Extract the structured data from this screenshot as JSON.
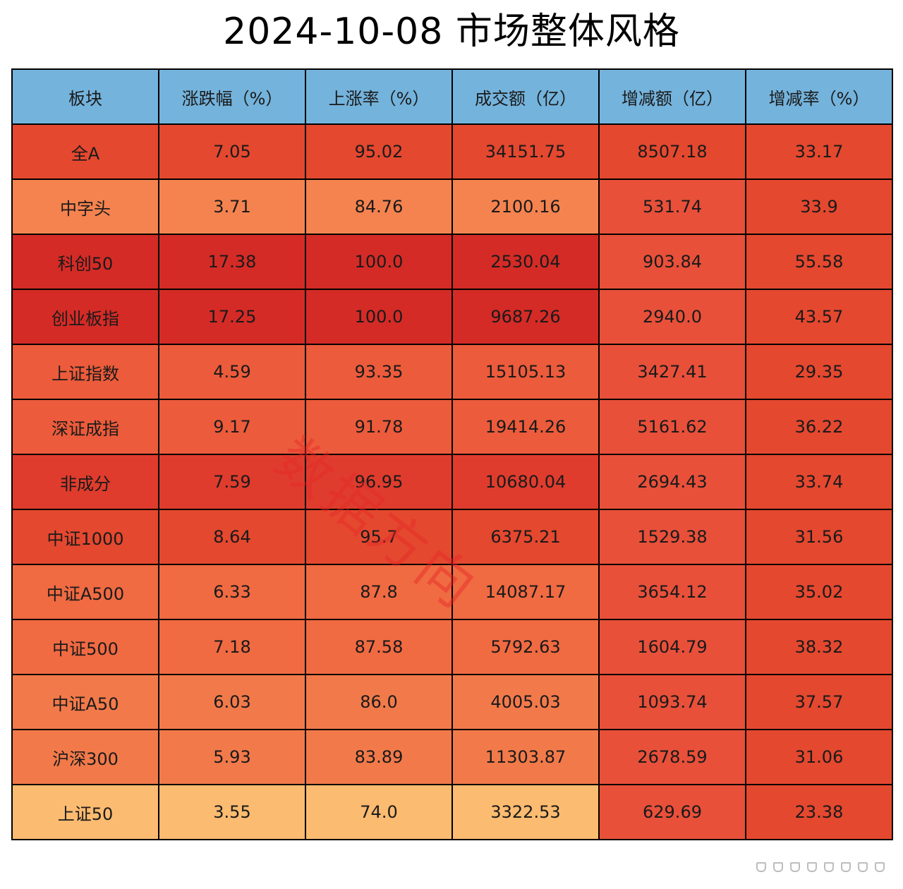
{
  "title": "2024-10-08 市场整体风格",
  "watermark": "数据方向",
  "chart_data": {
    "type": "heatmap",
    "title": "2024-10-08 市场整体风格",
    "columns": [
      "板块",
      "涨跌幅（%）",
      "上涨率（%）",
      "成交额（亿）",
      "增减额（亿）",
      "增减率（%）"
    ],
    "rows": [
      {
        "name": "全A",
        "values": [
          "7.05",
          "95.02",
          "34151.75",
          "8507.18",
          "33.17"
        ]
      },
      {
        "name": "中字头",
        "values": [
          "3.71",
          "84.76",
          "2100.16",
          "531.74",
          "33.9"
        ]
      },
      {
        "name": "科创50",
        "values": [
          "17.38",
          "100.0",
          "2530.04",
          "903.84",
          "55.58"
        ]
      },
      {
        "name": "创业板指",
        "values": [
          "17.25",
          "100.0",
          "9687.26",
          "2940.0",
          "43.57"
        ]
      },
      {
        "name": "上证指数",
        "values": [
          "4.59",
          "93.35",
          "15105.13",
          "3427.41",
          "29.35"
        ]
      },
      {
        "name": "深证成指",
        "values": [
          "9.17",
          "91.78",
          "19414.26",
          "5161.62",
          "36.22"
        ]
      },
      {
        "name": "非成分",
        "values": [
          "7.59",
          "96.95",
          "10680.04",
          "2694.43",
          "33.74"
        ]
      },
      {
        "name": "中证1000",
        "values": [
          "8.64",
          "95.7",
          "6375.21",
          "1529.38",
          "31.56"
        ]
      },
      {
        "name": "中证A500",
        "values": [
          "6.33",
          "87.8",
          "14087.17",
          "3654.12",
          "35.02"
        ]
      },
      {
        "name": "中证500",
        "values": [
          "7.18",
          "87.58",
          "5792.63",
          "1604.79",
          "38.32"
        ]
      },
      {
        "name": "中证A50",
        "values": [
          "6.03",
          "86.0",
          "4005.03",
          "1093.74",
          "37.57"
        ]
      },
      {
        "name": "沪深300",
        "values": [
          "5.93",
          "83.89",
          "11303.87",
          "2678.59",
          "31.06"
        ]
      },
      {
        "name": "上证50",
        "values": [
          "3.55",
          "74.0",
          "3322.53",
          "629.69",
          "23.38"
        ]
      }
    ],
    "colors": {
      "header": "#74b3dc",
      "border": "#000000"
    },
    "cell_colors": [
      [
        "#e4482f",
        "#e4482f",
        "#e4482f",
        "#e4482f",
        "#e4482f",
        "#e4482f"
      ],
      [
        "#f5834f",
        "#f5834f",
        "#f5834f",
        "#f5834f",
        "#e8503a",
        "#e4482f"
      ],
      [
        "#d42b26",
        "#d42b26",
        "#d42b26",
        "#d42b26",
        "#e8503a",
        "#e4482f"
      ],
      [
        "#d42b26",
        "#d42b26",
        "#d42b26",
        "#d42b26",
        "#e8503a",
        "#e4482f"
      ],
      [
        "#ec5b3b",
        "#ec5b3b",
        "#ec5b3b",
        "#ec5b3b",
        "#e8503a",
        "#e4482f"
      ],
      [
        "#ec5b3b",
        "#ec5b3b",
        "#ec5b3b",
        "#ec5b3b",
        "#e8503a",
        "#e4482f"
      ],
      [
        "#df3c2d",
        "#df3c2d",
        "#df3c2d",
        "#df3c2d",
        "#e8503a",
        "#e4482f"
      ],
      [
        "#e4482f",
        "#e4482f",
        "#e4482f",
        "#e4482f",
        "#e8503a",
        "#e4482f"
      ],
      [
        "#f06a42",
        "#f06a42",
        "#f06a42",
        "#f06a42",
        "#e8503a",
        "#e4482f"
      ],
      [
        "#f06a42",
        "#f06a42",
        "#f06a42",
        "#f06a42",
        "#e8503a",
        "#e4482f"
      ],
      [
        "#f27a4a",
        "#f27a4a",
        "#f27a4a",
        "#f27a4a",
        "#e8503a",
        "#e4482f"
      ],
      [
        "#f27a4a",
        "#f27a4a",
        "#f27a4a",
        "#f27a4a",
        "#e8503a",
        "#e4482f"
      ],
      [
        "#fbbb70",
        "#fbbb70",
        "#fbbb70",
        "#fbbb70",
        "#e8503a",
        "#e4482f"
      ]
    ]
  }
}
